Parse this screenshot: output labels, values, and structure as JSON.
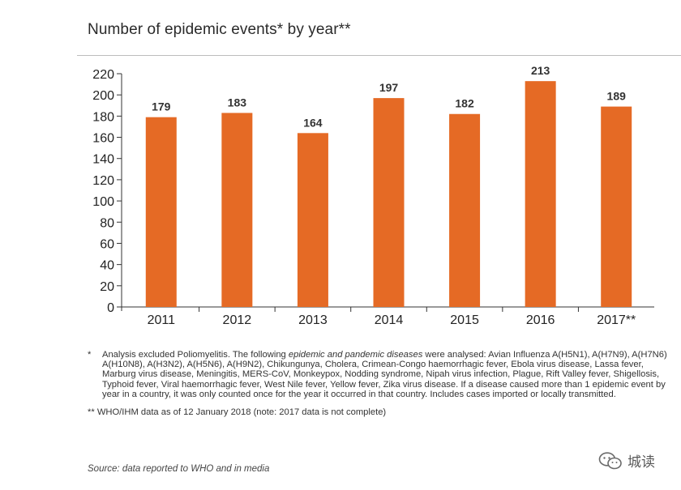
{
  "chart_data": {
    "type": "bar",
    "title": "Number of epidemic events* by year**",
    "categories": [
      "2011",
      "2012",
      "2013",
      "2014",
      "2015",
      "2016",
      "2017**"
    ],
    "values": [
      179,
      183,
      164,
      197,
      182,
      213,
      189
    ],
    "ylim": [
      0,
      220
    ],
    "yticks": [
      0,
      20,
      40,
      60,
      80,
      100,
      120,
      140,
      160,
      180,
      200,
      220
    ],
    "xlabel": "",
    "ylabel": "",
    "grid": false,
    "bar_color": "#E56A25",
    "data_labels": [
      "179",
      "183",
      "164",
      "197",
      "182",
      "213",
      "189"
    ]
  },
  "footnotes": {
    "note1_marker": "*",
    "note1_text_a": "Analysis excluded Poliomyelitis. The following ",
    "note1_text_em": "epidemic and pandemic diseases",
    "note1_text_b": " were analysed: Avian Influenza A(H5N1), A(H7N9), A(H7N6) A(H10N8), A(H3N2), A(H5N6), A(H9N2), Chikungunya, Cholera, Crimean-Congo haemorrhagic fever, Ebola virus disease,  Lassa fever, Marburg virus disease, Meningitis, MERS-CoV, Monkeypox, Nodding syndrome, Nipah virus infection, Plague, Rift Valley fever, Shigellosis, Typhoid fever, Viral haemorrhagic fever, West Nile fever, Yellow fever, Zika virus disease. If a disease caused more than 1 epidemic event by year in a country, it was only counted once for the year it occurred in that country. Includes cases imported or locally transmitted.",
    "note2": "** WHO/IHM data as of 12 January 2018 (note: 2017 data is not complete)",
    "source": "Source: data reported to WHO and in media"
  },
  "watermark": {
    "icon": "wechat-icon",
    "text": "城读"
  }
}
